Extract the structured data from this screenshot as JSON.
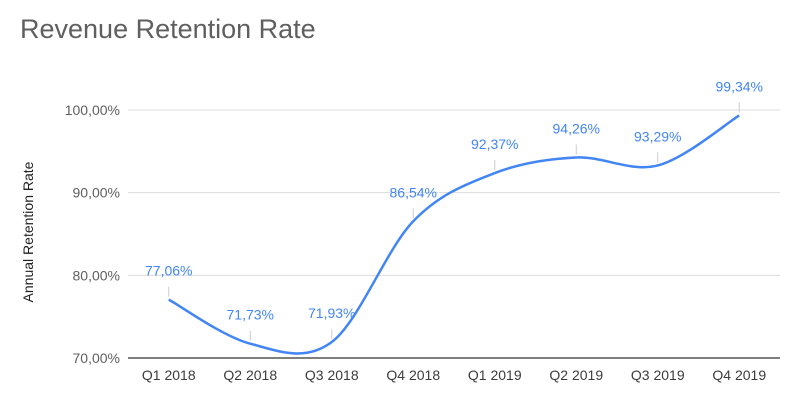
{
  "chart_data": {
    "type": "line",
    "title": "Revenue Retention Rate",
    "ylabel": "Annual Retention Rate",
    "xlabel": "",
    "categories": [
      "Q1 2018",
      "Q2 2018",
      "Q3 2018",
      "Q4 2018",
      "Q1 2019",
      "Q2 2019",
      "Q3 2019",
      "Q4 2019"
    ],
    "series": [
      {
        "values": [
          77.06,
          71.73,
          71.93,
          86.54,
          92.37,
          94.26,
          93.29,
          99.34
        ],
        "labels": [
          "77,06%",
          "71,73%",
          "71,93%",
          "86,54%",
          "92,37%",
          "94,26%",
          "93,29%",
          "99,34%"
        ]
      }
    ],
    "ylim": [
      70,
      100
    ],
    "yticks": [
      70,
      80,
      90,
      100
    ],
    "ytick_labels": [
      "70,00%",
      "80,00%",
      "90,00%",
      "100,00%"
    ],
    "grid": true,
    "line_color": "#4285f4",
    "smooth": true
  }
}
